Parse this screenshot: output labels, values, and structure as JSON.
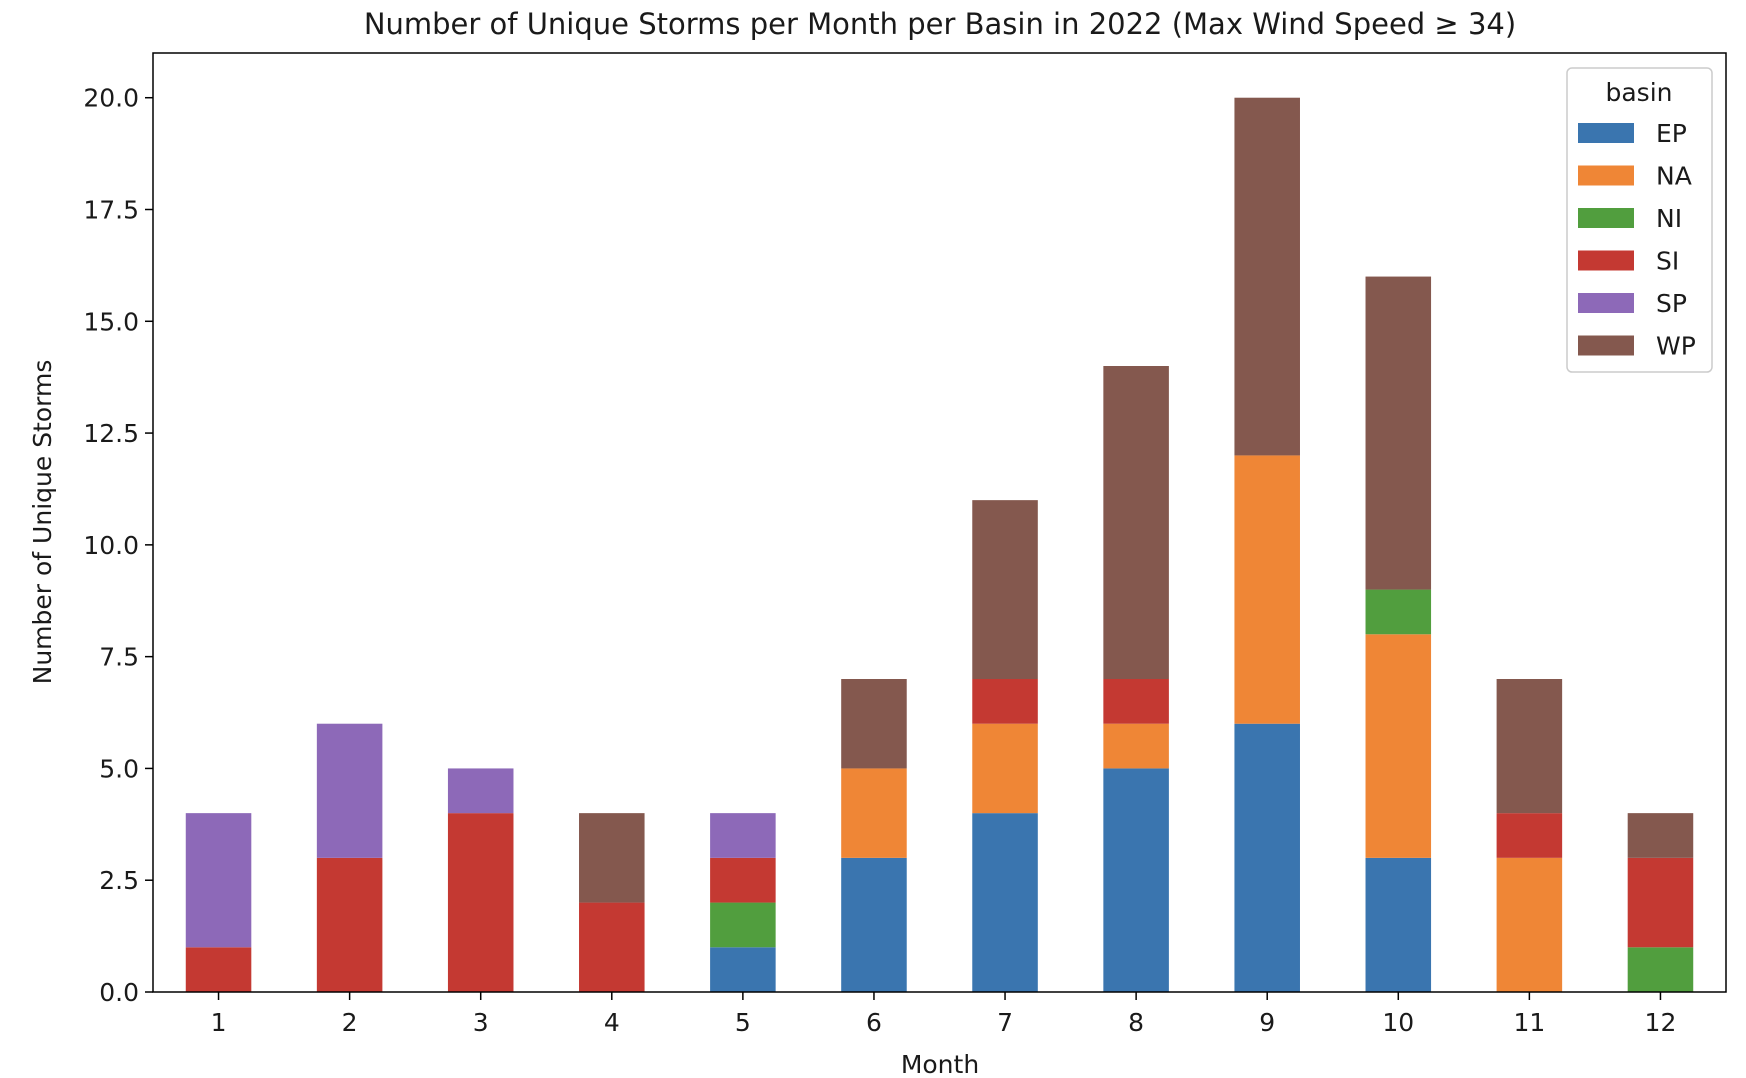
{
  "chart_data": {
    "type": "bar",
    "stacked": true,
    "title": "Number of Unique Storms per Month per Basin in 2022 (Max Wind Speed ≥ 34)",
    "xlabel": "Month",
    "ylabel": "Number of Unique Storms",
    "categories": [
      "1",
      "2",
      "3",
      "4",
      "5",
      "6",
      "7",
      "8",
      "9",
      "10",
      "11",
      "12"
    ],
    "ylim": [
      0,
      21
    ],
    "yticks": [
      "0.0",
      "2.5",
      "5.0",
      "7.5",
      "10.0",
      "12.5",
      "15.0",
      "17.5",
      "20.0"
    ],
    "ytick_values": [
      0,
      2.5,
      5,
      7.5,
      10,
      12.5,
      15,
      17.5,
      20
    ],
    "grid": false,
    "legend": {
      "title": "basin",
      "placement": "top-right"
    },
    "series": [
      {
        "name": "EP",
        "color": "#3a75af",
        "values": [
          0,
          0,
          0,
          0,
          1,
          3,
          4,
          5,
          6,
          3,
          0,
          0
        ]
      },
      {
        "name": "NA",
        "color": "#ef8636",
        "values": [
          0,
          0,
          0,
          0,
          0,
          2,
          2,
          1,
          6,
          5,
          3,
          0
        ]
      },
      {
        "name": "NI",
        "color": "#519e3e",
        "values": [
          0,
          0,
          0,
          0,
          1,
          0,
          0,
          0,
          0,
          1,
          0,
          1
        ]
      },
      {
        "name": "SI",
        "color": "#c43932",
        "values": [
          1,
          3,
          4,
          2,
          1,
          0,
          1,
          1,
          0,
          0,
          1,
          2
        ]
      },
      {
        "name": "SP",
        "color": "#8d69b8",
        "values": [
          3,
          3,
          1,
          0,
          1,
          0,
          0,
          0,
          0,
          0,
          0,
          0
        ]
      },
      {
        "name": "WP",
        "color": "#84584e",
        "values": [
          0,
          0,
          0,
          2,
          0,
          2,
          4,
          7,
          8,
          7,
          3,
          1
        ]
      }
    ]
  }
}
